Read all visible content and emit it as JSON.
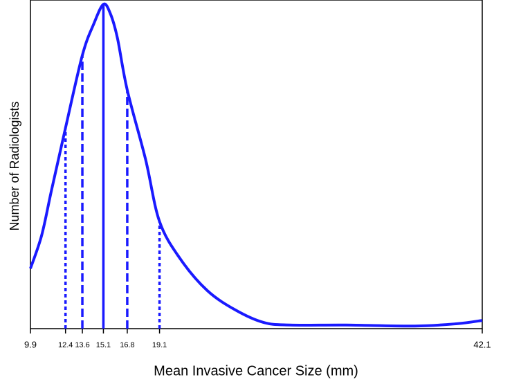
{
  "chart_data": {
    "type": "line",
    "xlabel": "Mean Invasive Cancer Size (mm)",
    "ylabel": "Number of Radiologists",
    "xlim": [
      9.9,
      42.1
    ],
    "ylim": [
      0,
      100
    ],
    "xticks": [
      9.9,
      12.4,
      13.6,
      15.1,
      16.8,
      19.1,
      42.1
    ],
    "color": "#1a1aff",
    "series": [
      {
        "x": [
          9.9,
          10.7,
          11.4,
          12.4,
          13.6,
          14.4,
          15.1,
          15.6,
          16.1,
          16.8,
          18.1,
          19.1,
          20.6,
          22.5,
          24.5,
          26.5,
          28.4,
          32.4,
          37.3,
          40.3,
          42.1
        ],
        "values": [
          18.3,
          28.4,
          42.1,
          61.1,
          83.2,
          92.6,
          98.7,
          95.8,
          88.4,
          72.6,
          51.6,
          32.6,
          21.1,
          11.6,
          5.7,
          1.9,
          1.1,
          1.1,
          0.8,
          1.5,
          2.5
        ]
      }
    ],
    "markers": {
      "x": [
        12.4,
        13.6,
        15.1,
        16.8,
        19.1
      ],
      "values": [
        61.1,
        83.2,
        98.7,
        72.6,
        32.6
      ],
      "styles": [
        "dotted",
        "dashed",
        "solid",
        "dashed",
        "dotted"
      ]
    }
  }
}
